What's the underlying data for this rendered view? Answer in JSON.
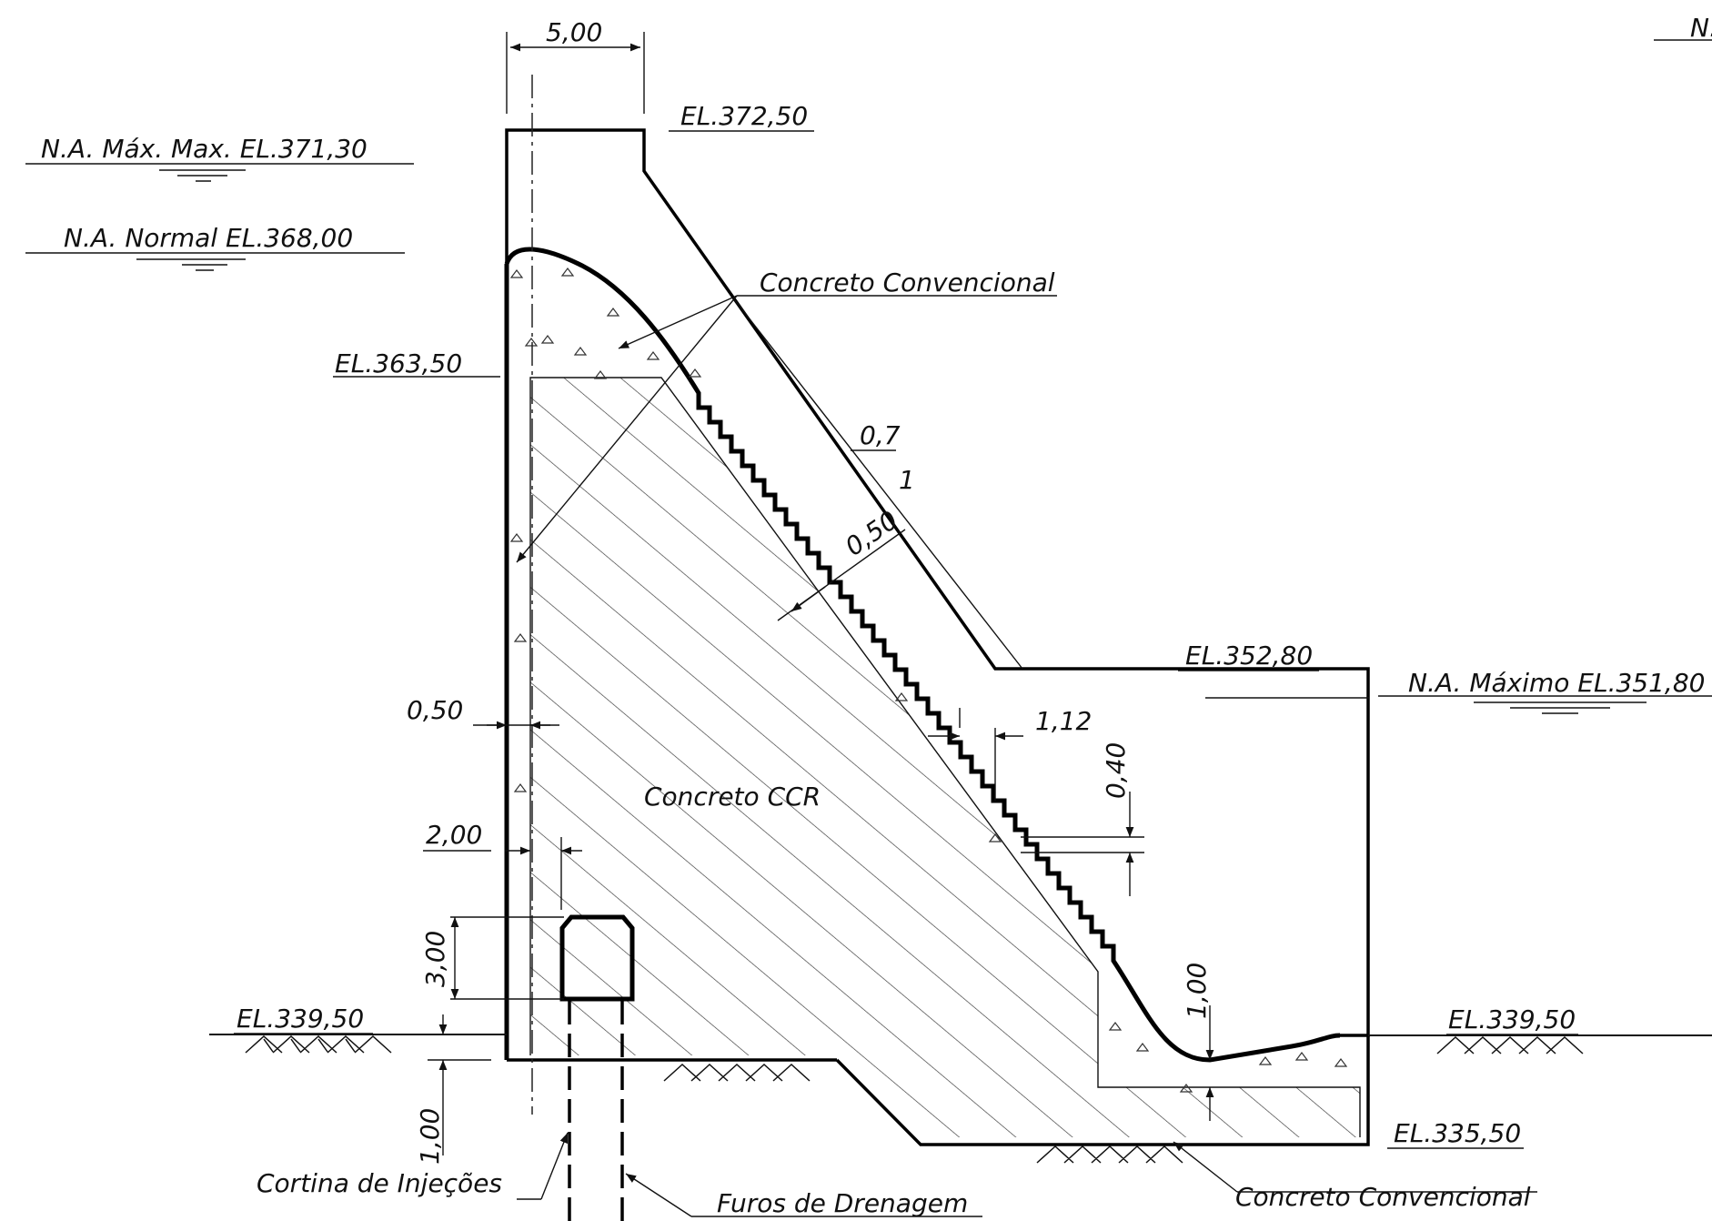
{
  "labels": {
    "crest_width": "5,00",
    "crest_elev": "EL.372,50",
    "na_max_max": "N.A. Máx. Max. EL.371,30",
    "na_normal": "N.A. Normal EL.368,00",
    "conc_conv_top": "Concreto Convencional",
    "el_363": "EL.363,50",
    "slope_h": "0,7",
    "slope_v": "1",
    "thick_050_face": "0,50",
    "el_352": "EL.352,80",
    "na_maximo": "N.A. Máximo EL.351,80",
    "upstream_050": "0,50",
    "step_112": "1,12",
    "step_040": "0,40",
    "conc_ccr": "Concreto CCR",
    "gallery_200": "2,00",
    "gallery_300": "3,00",
    "el_339_left": "EL.339,50",
    "el_339_right": "EL.339,50",
    "base_100_left": "1,00",
    "base_100_right": "1,00",
    "el_335": "EL.335,50",
    "cortina": "Cortina de Injeções",
    "furos": "Furos de Drenagem",
    "conc_conv_bottom": "Concreto Convencional",
    "edge_na": "N."
  }
}
